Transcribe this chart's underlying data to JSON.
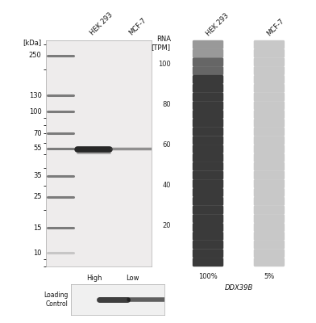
{
  "wb_title": "[kDa]",
  "wb_col_labels": [
    "HEK 293",
    "MCF-7"
  ],
  "wb_col_sublabels": [
    "High",
    "Low"
  ],
  "wb_markers": [
    250,
    130,
    100,
    70,
    55,
    35,
    25,
    15,
    10
  ],
  "wb_bg_color": "#eeecec",
  "wb_band_color": "#1a1a1a",
  "wb_marker_band_color": "#555555",
  "lc_label": "Loading\nControl",
  "rna_title": "RNA\n[TPM]",
  "rna_col_labels": [
    "HEK 293",
    "MCF-7"
  ],
  "rna_col_sublabels": [
    "100%",
    "5%"
  ],
  "rna_gene": "DDX39B",
  "rna_n_bars": 26,
  "rna_yticks": [
    20,
    40,
    60,
    80,
    100
  ],
  "bg_color": "#ffffff",
  "font_size": 6.0
}
